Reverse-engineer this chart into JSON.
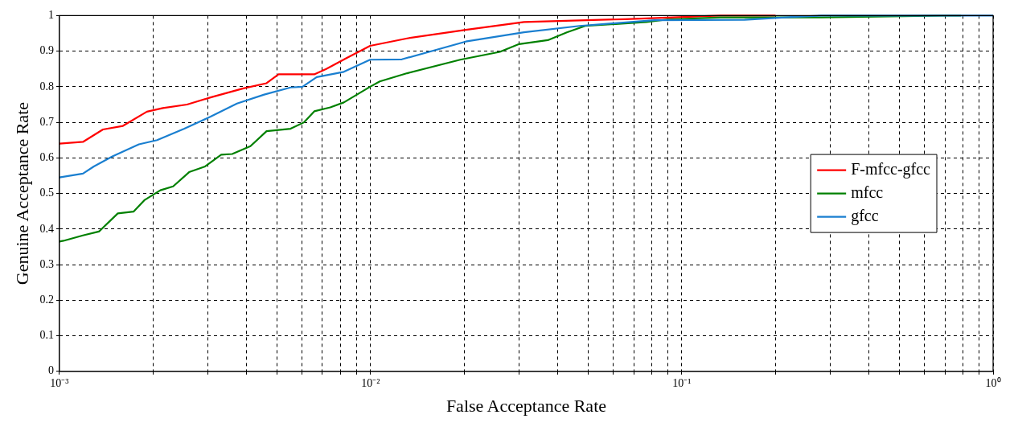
{
  "chart_data": {
    "type": "line",
    "xlabel": "False Acceptance Rate",
    "ylabel": "Genuine Acceptance Rate",
    "log": "x",
    "xlim": [
      0.001,
      1
    ],
    "ylim": [
      0,
      1
    ],
    "xticks": [
      {
        "value": 0.001,
        "label": "10⁻³"
      },
      {
        "value": 0.002,
        "label": null
      },
      {
        "value": 0.003,
        "label": null
      },
      {
        "value": 0.004,
        "label": null
      },
      {
        "value": 0.005,
        "label": null
      },
      {
        "value": 0.006,
        "label": null
      },
      {
        "value": 0.007,
        "label": null
      },
      {
        "value": 0.008,
        "label": null
      },
      {
        "value": 0.009,
        "label": null
      },
      {
        "value": 0.01,
        "label": "10⁻²"
      },
      {
        "value": 0.02,
        "label": null
      },
      {
        "value": 0.03,
        "label": null
      },
      {
        "value": 0.04,
        "label": null
      },
      {
        "value": 0.05,
        "label": null
      },
      {
        "value": 0.06,
        "label": null
      },
      {
        "value": 0.07,
        "label": null
      },
      {
        "value": 0.08,
        "label": null
      },
      {
        "value": 0.09,
        "label": null
      },
      {
        "value": 0.1,
        "label": "10⁻¹"
      },
      {
        "value": 0.2,
        "label": null
      },
      {
        "value": 0.3,
        "label": null
      },
      {
        "value": 0.4,
        "label": null
      },
      {
        "value": 0.5,
        "label": null
      },
      {
        "value": 0.6,
        "label": null
      },
      {
        "value": 0.7,
        "label": null
      },
      {
        "value": 0.8,
        "label": null
      },
      {
        "value": 0.9,
        "label": null
      },
      {
        "value": 1,
        "label": "10⁰"
      }
    ],
    "yticks": [
      0,
      0.1,
      0.2,
      0.3,
      0.4,
      0.5,
      0.6,
      0.7,
      0.8,
      0.9,
      1
    ],
    "grid": true,
    "legend": "right",
    "marker": "none",
    "series": [
      {
        "name": "F-mfcc-gfcc",
        "color": "#ff0000",
        "x": [
          0.001,
          0.00119,
          0.00138,
          0.0016,
          0.00191,
          0.00215,
          0.00257,
          0.00306,
          0.00388,
          0.00463,
          0.00506,
          0.00659,
          0.0072,
          0.00834,
          0.00996,
          0.0131,
          0.0202,
          0.0311,
          0.0657,
          0.0935,
          0.133,
          0.2
        ],
        "values": [
          0.64,
          0.645,
          0.68,
          0.69,
          0.73,
          0.74,
          0.75,
          0.77,
          0.795,
          0.81,
          0.835,
          0.835,
          0.85,
          0.88,
          0.915,
          0.936,
          0.96,
          0.982,
          0.99,
          0.995,
          1,
          1
        ]
      },
      {
        "name": "mfcc",
        "color": "#008000",
        "x": [
          0.001,
          0.00103,
          0.00119,
          0.00134,
          0.00154,
          0.00173,
          0.00188,
          0.00211,
          0.00232,
          0.00261,
          0.00294,
          0.00331,
          0.00359,
          0.00411,
          0.00463,
          0.00553,
          0.00611,
          0.00659,
          0.00742,
          0.0082,
          0.00996,
          0.0107,
          0.0131,
          0.0194,
          0.026,
          0.03,
          0.0371,
          0.0427,
          0.0489,
          0.0769,
          0.0897,
          0.133,
          0.281,
          0.7,
          0.789
        ],
        "values": [
          0.365,
          0.367,
          0.382,
          0.393,
          0.444,
          0.449,
          0.482,
          0.509,
          0.52,
          0.56,
          0.576,
          0.609,
          0.611,
          0.633,
          0.675,
          0.682,
          0.7,
          0.731,
          0.742,
          0.756,
          0.8,
          0.815,
          0.838,
          0.876,
          0.898,
          0.92,
          0.931,
          0.953,
          0.971,
          0.982,
          0.989,
          0.995,
          0.995,
          1,
          1
        ]
      },
      {
        "name": "gfcc",
        "color": "#1a7fd0",
        "x": [
          0.001,
          0.00119,
          0.00129,
          0.00148,
          0.0018,
          0.00206,
          0.00252,
          0.00306,
          0.00372,
          0.00455,
          0.00553,
          0.00604,
          0.00671,
          0.0082,
          0.00996,
          0.0126,
          0.0202,
          0.0311,
          0.0469,
          0.0816,
          0.159,
          0.226,
          0.281,
          1
        ],
        "values": [
          0.545,
          0.556,
          0.576,
          0.604,
          0.638,
          0.65,
          0.682,
          0.716,
          0.753,
          0.778,
          0.798,
          0.8,
          0.827,
          0.842,
          0.876,
          0.877,
          0.927,
          0.953,
          0.971,
          0.987,
          0.988,
          0.996,
          1,
          1
        ]
      }
    ]
  }
}
